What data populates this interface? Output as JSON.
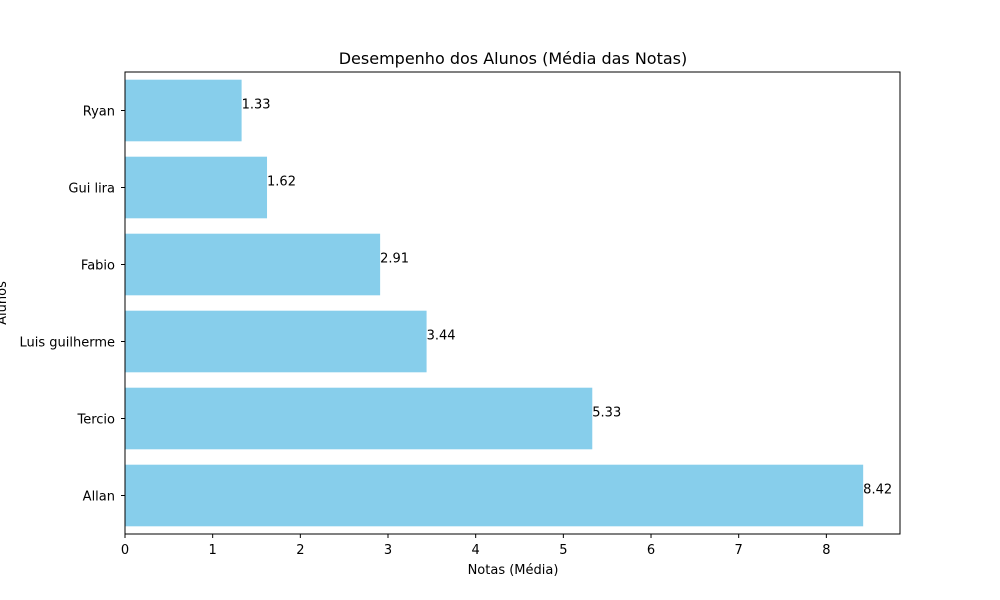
{
  "chart_data": {
    "type": "bar",
    "orientation": "horizontal",
    "title": "Desempenho dos Alunos (Média das Notas)",
    "xlabel": "Notas (Média)",
    "ylabel": "Alunos",
    "categories": [
      "Allan",
      "Tercio",
      "Luis guilherme",
      "Fabio",
      "Gui lira",
      "Ryan"
    ],
    "values": [
      8.42,
      5.33,
      3.44,
      2.91,
      1.62,
      1.33
    ],
    "value_labels": [
      "8.42",
      "5.33",
      "3.44",
      "2.91",
      "1.62",
      "1.33"
    ],
    "xlim": [
      0,
      8.84
    ],
    "xticks": [
      0,
      1,
      2,
      3,
      4,
      5,
      6,
      7,
      8
    ],
    "xtick_labels": [
      "0",
      "1",
      "2",
      "3",
      "4",
      "5",
      "6",
      "7",
      "8"
    ],
    "grid": false,
    "legend": "none",
    "bar_color": "#87ceeb",
    "axis_color": "#000000"
  }
}
